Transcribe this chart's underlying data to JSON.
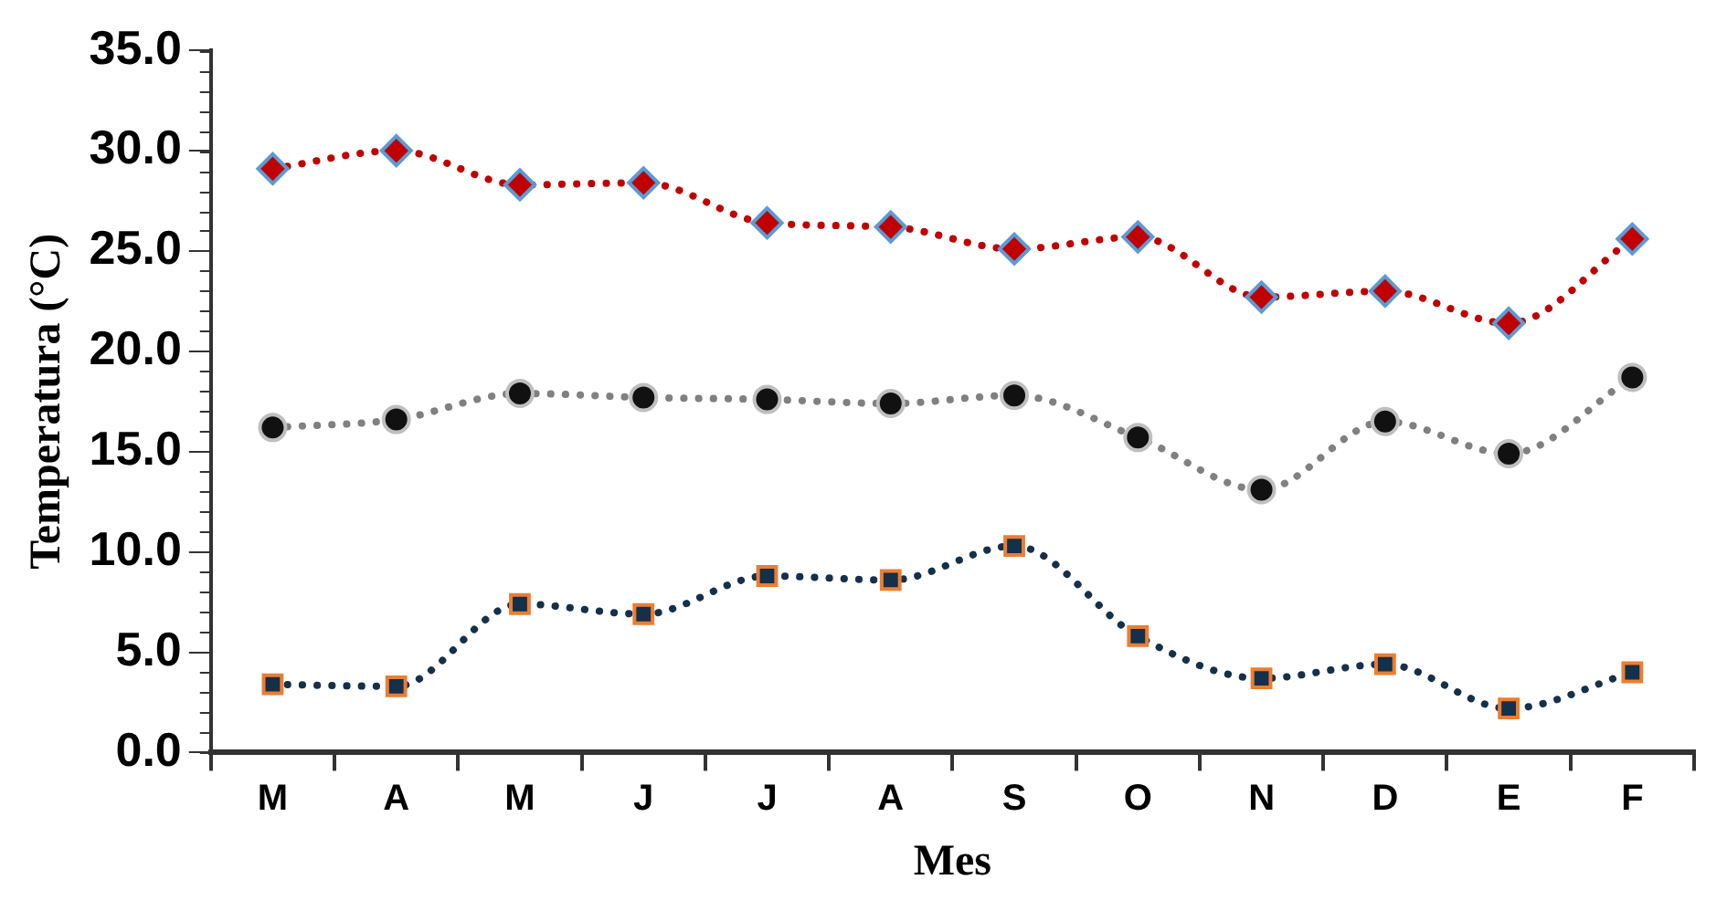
{
  "chart_data": {
    "type": "line",
    "xlabel": "Mes",
    "ylabel": "Temperatura (°C)",
    "categories": [
      "M",
      "A",
      "M",
      "J",
      "J",
      "A",
      "S",
      "O",
      "N",
      "D",
      "E",
      "F"
    ],
    "series": [
      {
        "color": "#c00000",
        "marker": "diamond",
        "values": [
          29.1,
          30.0,
          28.3,
          28.4,
          26.4,
          26.2,
          25.1,
          25.7,
          22.7,
          23.0,
          21.4,
          25.6
        ]
      },
      {
        "color": "#808080",
        "marker": "circle",
        "values": [
          16.2,
          16.6,
          17.9,
          17.7,
          17.6,
          17.4,
          17.8,
          15.7,
          13.1,
          16.5,
          14.9,
          18.7
        ]
      },
      {
        "color": "#14304a",
        "marker": "square",
        "values": [
          3.4,
          3.3,
          7.4,
          6.9,
          8.8,
          8.6,
          10.3,
          5.8,
          3.7,
          4.4,
          2.2,
          4.0
        ]
      }
    ],
    "ylim": [
      0,
      35
    ],
    "yticks": [
      {
        "value": 0,
        "label": "0.0"
      },
      {
        "value": 5,
        "label": "5.0"
      },
      {
        "value": 10,
        "label": "10.0"
      },
      {
        "value": 15,
        "label": "15.0"
      },
      {
        "value": 20,
        "label": "20.0"
      },
      {
        "value": 25,
        "label": "25.0"
      },
      {
        "value": 30,
        "label": "30.0"
      },
      {
        "value": 35,
        "label": "35.0"
      }
    ],
    "line_style": "dotted",
    "grid": false,
    "legend": false
  }
}
